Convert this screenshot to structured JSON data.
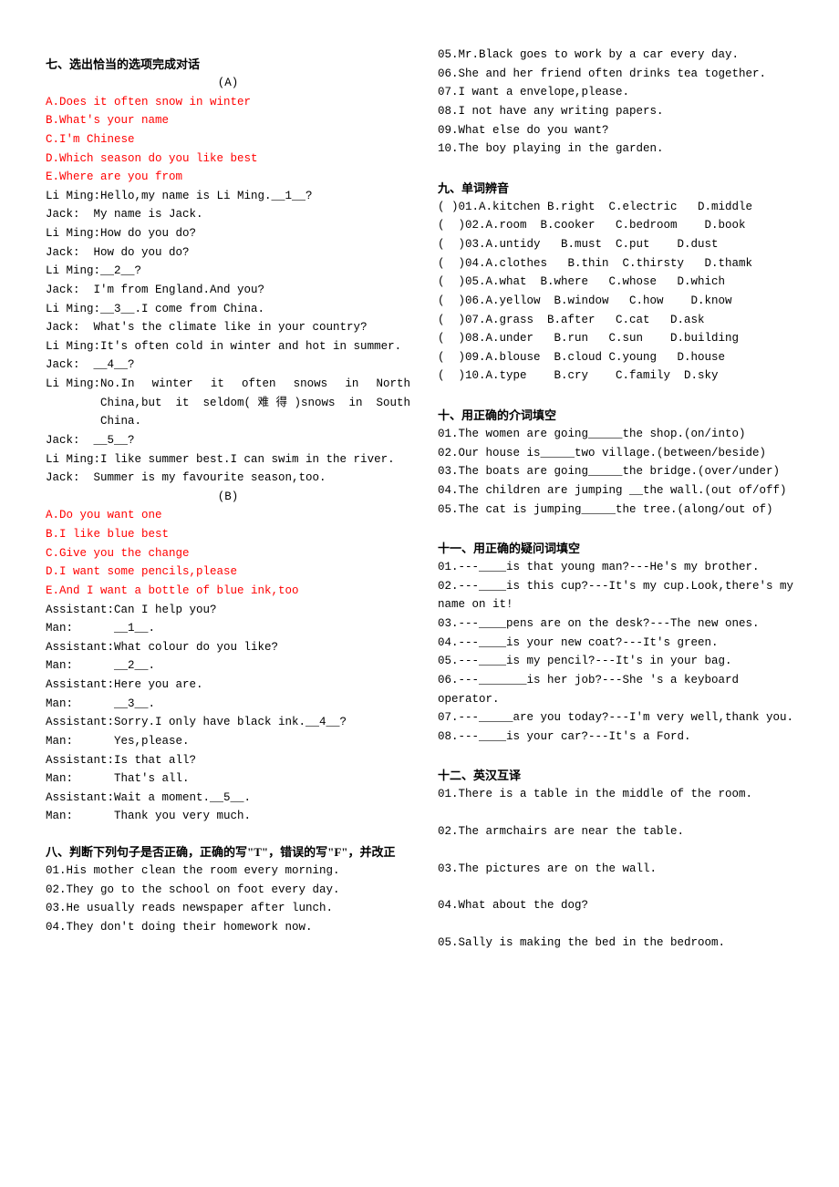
{
  "col1": {
    "section7_title": "七、选出恰当的选项完成对话",
    "section7a_label": "(A)",
    "section7a_options": [
      "A.Does it often snow in winter",
      "B.What's your name",
      "C.I'm Chinese",
      "D.Which season do you like best",
      "E.Where are you from"
    ],
    "section7a_dialog": [
      {
        "s": "Li Ming:",
        "t": "Hello,my name is Li Ming.__1__?"
      },
      {
        "s": "Jack:  ",
        "t": "My name is Jack."
      },
      {
        "s": "Li Ming:",
        "t": "How do you do?"
      },
      {
        "s": "Jack:  ",
        "t": "How do you do?"
      },
      {
        "s": "Li Ming:",
        "t": "__2__?"
      },
      {
        "s": "Jack:  ",
        "t": "I'm from England.And you?"
      },
      {
        "s": "Li Ming:",
        "t": "__3__.I come from China."
      },
      {
        "s": "Jack:  ",
        "t": "What's the climate like in your country?"
      },
      {
        "s": "Li Ming:",
        "t": "It's often cold in winter and hot in summer."
      },
      {
        "s": "Jack:  ",
        "t": "__4__?"
      },
      {
        "s": "Li Ming:",
        "t": "No.In winter it often snows in North China,but it seldom(难得)snows in South China."
      },
      {
        "s": "Jack:  ",
        "t": "__5__?"
      },
      {
        "s": "Li Ming:",
        "t": "I like summer best.I can swim in the river."
      },
      {
        "s": "Jack:  ",
        "t": "Summer is my favourite season,too."
      }
    ],
    "section7b_label": "(B)",
    "section7b_options": [
      "A.Do you want one",
      "B.I like blue best",
      "C.Give you the change",
      "D.I want some pencils,please",
      "E.And I want a bottle of blue ink,too"
    ],
    "section7b_dialog": [
      {
        "s": "Assistant:",
        "t": "Can I help you?"
      },
      {
        "s": "Man:      ",
        "t": "__1__."
      },
      {
        "s": "Assistant:",
        "t": "What colour do you like?"
      },
      {
        "s": "Man:      ",
        "t": "__2__."
      },
      {
        "s": "Assistant:",
        "t": "Here you are."
      },
      {
        "s": "Man:      ",
        "t": "__3__."
      },
      {
        "s": "Assistant:",
        "t": "Sorry.I only have black ink.__4__?"
      },
      {
        "s": "Man:      ",
        "t": "Yes,please."
      },
      {
        "s": "Assistant:",
        "t": "Is that all?"
      },
      {
        "s": "Man:      ",
        "t": "That's all."
      },
      {
        "s": "Assistant:",
        "t": "Wait a moment.__5__."
      },
      {
        "s": "Man:      ",
        "t": "Thank you very much."
      }
    ],
    "section8_title": "八、判断下列句子是否正确，正确的写\"T\"，错误的写\"F\"，并改正",
    "section8_items": [
      "01.His mother clean the room every morning.",
      "02.They go to the school on foot every day.",
      "03.He usually reads newspaper after lunch.",
      "04.They don't doing their homework now."
    ]
  },
  "col2": {
    "section8_cont": [
      "05.Mr.Black goes to work by a car every day.",
      "06.She and her friend often drinks tea together.",
      "07.I want a envelope,please.",
      "08.I not have any writing papers.",
      "09.What else do you want?",
      "10.The boy playing in the garden."
    ],
    "section9_title": "九、单词辨音",
    "section9_items": [
      "( )01.A.kitchen B.right  C.electric   D.middle",
      "(  )02.A.room  B.cooker   C.bedroom    D.book",
      "(  )03.A.untidy   B.must  C.put    D.dust",
      "(  )04.A.clothes   B.thin  C.thirsty   D.thamk",
      "(  )05.A.what  B.where   C.whose   D.which",
      "(  )06.A.yellow  B.window   C.how    D.know",
      "(  )07.A.grass  B.after   C.cat   D.ask",
      "(  )08.A.under   B.run   C.sun    D.building",
      "(  )09.A.blouse  B.cloud C.young   D.house",
      "(  )10.A.type    B.cry    C.family  D.sky"
    ],
    "section10_title": "十、用正确的介词填空",
    "section10_items": [
      "01.The women are going_____the shop.(on/into)",
      "02.Our house is_____two village.(between/beside)",
      "03.The boats are going_____the bridge.(over/under)",
      "04.The children are jumping __the wall.(out of/off)",
      "05.The cat is jumping_____the tree.(along/out of)"
    ],
    "section11_title": "十一、用正确的疑问词填空",
    "section11_items": [
      "01.---____is that young man?---He's my brother.",
      "02.---____is this cup?---It's my cup.Look,there's my name on it!",
      "03.---____pens are on the desk?---The new ones.",
      "04.---____is your new coat?---It's green.",
      "05.---____is my pencil?---It's in your bag.",
      "06.---_______is her job?---She 's a keyboard operator.",
      "07.---_____are you today?---I'm very well,thank you.",
      "08.---____is your car?---It's a Ford."
    ],
    "section12_title": "十二、英汉互译",
    "section12_items": [
      "01.There is a table in the middle of the room.",
      "02.The armchairs are near the table.",
      "03.The pictures are on the wall.",
      "04.What about the dog?",
      "05.Sally is making the bed in the bedroom."
    ]
  }
}
